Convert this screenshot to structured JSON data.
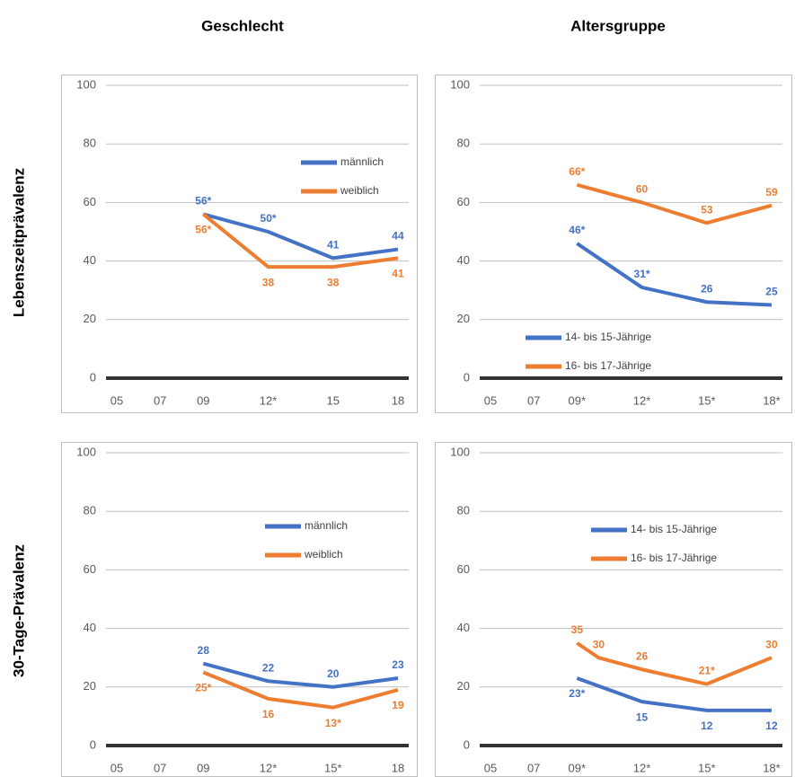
{
  "columns": [
    "Geschlecht",
    "Altersgruppe"
  ],
  "rows": [
    "Lebenszeitprävalenz",
    "30-Tage-Prävalenz"
  ],
  "chart_data": [
    {
      "type": "line",
      "xlim": [
        4.5,
        18.5
      ],
      "ylim": [
        0,
        100
      ],
      "grid": true,
      "legend": "upper right",
      "xticks": [
        {
          "value": 5,
          "label": "05"
        },
        {
          "value": 7,
          "label": "07"
        },
        {
          "value": 9,
          "label": "09"
        },
        {
          "value": 12,
          "label": "12*"
        },
        15,
        18
      ],
      "yticks": [
        0,
        20,
        40,
        60,
        80,
        100
      ],
      "x": [
        9,
        12,
        15,
        18
      ],
      "series": [
        {
          "name": "männlich",
          "color": "#4472c4",
          "values": [
            56,
            50,
            41,
            44
          ],
          "value_labels": [
            "56*",
            "50*",
            "41",
            "44"
          ]
        },
        {
          "name": "weiblich",
          "color": "#ed7d31",
          "values": [
            56,
            38,
            38,
            41
          ],
          "value_labels": [
            "56*",
            "38",
            "38",
            "41"
          ]
        }
      ]
    },
    {
      "type": "line",
      "xlim": [
        4.5,
        18.5
      ],
      "ylim": [
        0,
        100
      ],
      "grid": true,
      "legend": "lower left",
      "xticks": [
        {
          "value": 5,
          "label": "05"
        },
        {
          "value": 7,
          "label": "07"
        },
        {
          "value": 9,
          "label": "09*"
        },
        {
          "value": 12,
          "label": "12*"
        },
        {
          "value": 15,
          "label": "15*"
        },
        {
          "value": 18,
          "label": "18*"
        }
      ],
      "yticks": [
        0,
        20,
        40,
        60,
        80,
        100
      ],
      "x": [
        9,
        12,
        15,
        18
      ],
      "series": [
        {
          "name": "14- bis 15-Jährige",
          "color": "#4472c4",
          "values": [
            46,
            31,
            26,
            25
          ],
          "value_labels": [
            "46*",
            "31*",
            "26",
            "25"
          ]
        },
        {
          "name": "16- bis 17-Jährige",
          "color": "#ed7d31",
          "values": [
            66,
            60,
            53,
            59
          ],
          "value_labels": [
            "66*",
            "60",
            "53",
            "59"
          ]
        }
      ]
    },
    {
      "type": "line",
      "xlim": [
        4.5,
        18.5
      ],
      "ylim": [
        0,
        100
      ],
      "grid": true,
      "legend": "upper center",
      "xticks": [
        {
          "value": 5,
          "label": "05"
        },
        {
          "value": 7,
          "label": "07"
        },
        {
          "value": 9,
          "label": "09"
        },
        {
          "value": 12,
          "label": "12*"
        },
        {
          "value": 15,
          "label": "15*"
        },
        18
      ],
      "yticks": [
        0,
        20,
        40,
        60,
        80,
        100
      ],
      "x": [
        9,
        12,
        15,
        18
      ],
      "series": [
        {
          "name": "männlich",
          "color": "#4472c4",
          "values": [
            28,
            22,
            20,
            23
          ]
        },
        {
          "name": "weiblich",
          "color": "#ed7d31",
          "values": [
            25,
            16,
            13,
            19
          ],
          "value_labels": [
            "25*",
            "16",
            "13*",
            "19"
          ]
        }
      ]
    },
    {
      "type": "line",
      "xlim": [
        4.5,
        18.5
      ],
      "ylim": [
        0,
        100
      ],
      "grid": true,
      "legend": "upper left",
      "xticks": [
        {
          "value": 5,
          "label": "05"
        },
        {
          "value": 7,
          "label": "07"
        },
        {
          "value": 9,
          "label": "09*"
        },
        {
          "value": 12,
          "label": "12*"
        },
        {
          "value": 15,
          "label": "15*"
        },
        {
          "value": 18,
          "label": "18*"
        }
      ],
      "yticks": [
        0,
        20,
        40,
        60,
        80,
        100
      ],
      "x": [
        9,
        12,
        15,
        18
      ],
      "series": [
        {
          "name": "14- bis 15-Jährige",
          "color": "#4472c4",
          "values": [
            23,
            15,
            12,
            12
          ],
          "value_labels": [
            "23*",
            "15",
            "12",
            "12"
          ]
        },
        {
          "name": "16- bis 17-Jährige",
          "color": "#ed7d31",
          "x": [
            9,
            10,
            12,
            15,
            18
          ],
          "values": [
            35,
            30,
            26,
            21,
            30
          ],
          "value_labels": [
            "35",
            "30",
            "26",
            "21*",
            "30"
          ]
        }
      ]
    }
  ]
}
